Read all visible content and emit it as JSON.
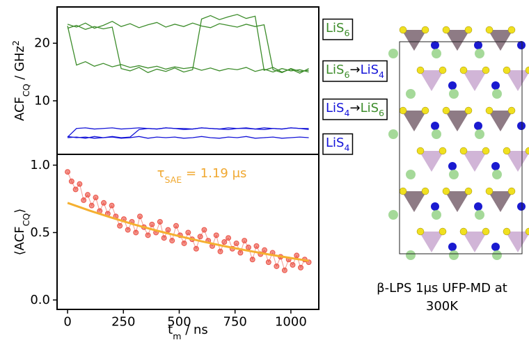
{
  "chart_data": [
    {
      "type": "line",
      "ylabel": [
        {
          "text": "ACF"
        },
        {
          "text": "CQ",
          "sub": true
        },
        {
          "text": " / GHz"
        },
        {
          "text": "2",
          "sup": true
        }
      ],
      "xlim": [
        -47,
        1125
      ],
      "ylim": [
        0.7,
        26.3
      ],
      "yticks": [
        10,
        20
      ],
      "x": [
        0,
        40,
        80,
        120,
        160,
        200,
        240,
        280,
        320,
        360,
        400,
        440,
        480,
        520,
        560,
        600,
        640,
        680,
        720,
        760,
        800,
        840,
        880,
        920,
        960,
        1000,
        1040,
        1080
      ],
      "series": [
        {
          "color": "#3c8c2a",
          "values": [
            23.3,
            22.8,
            23.5,
            22.6,
            23.1,
            23.8,
            22.9,
            23.4,
            22.7,
            23.2,
            23.6,
            22.8,
            23.3,
            22.9,
            23.5,
            23.0,
            22.7,
            23.4,
            23.1,
            22.8,
            23.3,
            22.9,
            23.2,
            15.4,
            14.9,
            15.6,
            15.1,
            15.3
          ]
        },
        {
          "color": "#3c8c2a",
          "values": [
            22.6,
            23.1,
            22.4,
            22.9,
            22.5,
            22.8,
            15.6,
            15.2,
            15.8,
            14.9,
            15.5,
            15.1,
            15.7,
            15.0,
            15.4,
            24.2,
            24.8,
            24.1,
            24.6,
            25.0,
            24.3,
            24.7,
            15.3,
            15.8,
            15.0,
            15.5,
            14.8,
            15.6
          ]
        },
        {
          "color": "#3c8c2a",
          "values": [
            23.0,
            16.2,
            16.8,
            16.0,
            16.5,
            15.9,
            16.3,
            15.8,
            16.1,
            15.7,
            16.0,
            15.5,
            15.9,
            15.6,
            15.8,
            15.3,
            15.7,
            15.2,
            15.6,
            15.4,
            15.8,
            15.1,
            15.5,
            15.0,
            15.6,
            15.2,
            15.4,
            15.0
          ]
        },
        {
          "color": "#1414d8",
          "values": [
            3.7,
            5.2,
            5.3,
            5.1,
            5.2,
            5.3,
            5.1,
            5.2,
            5.3,
            5.2,
            5.1,
            5.3,
            5.2,
            5.2,
            5.1,
            5.3,
            5.2,
            5.1,
            5.3,
            5.2,
            5.2,
            5.1,
            5.3,
            5.2,
            5.1,
            5.3,
            5.2,
            5.2
          ]
        },
        {
          "color": "#1414d8",
          "values": [
            3.6,
            3.7,
            3.5,
            3.8,
            3.6,
            3.7,
            3.5,
            3.6,
            3.8,
            3.5,
            3.7,
            3.6,
            3.7,
            3.5,
            3.6,
            3.8,
            3.6,
            3.5,
            3.7,
            3.6,
            3.8,
            3.5,
            3.6,
            3.7,
            3.5,
            3.6,
            3.7,
            3.6
          ]
        },
        {
          "color": "#1414d8",
          "values": [
            3.8,
            3.6,
            3.7,
            3.5,
            3.6,
            3.8,
            3.6,
            3.7,
            5.0,
            5.2,
            5.1,
            5.3,
            5.2,
            5.0,
            5.1,
            5.3,
            5.2,
            5.1,
            5.0,
            5.2,
            5.3,
            5.1,
            5.0,
            5.2,
            5.1,
            5.3,
            5.2,
            5.0
          ]
        }
      ],
      "annotations": [
        [
          {
            "text": "LiS",
            "color": "#3c8c2a"
          },
          {
            "text": "6",
            "color": "#3c8c2a",
            "sub": true
          }
        ],
        [
          {
            "text": "LiS",
            "color": "#3c8c2a"
          },
          {
            "text": "6",
            "color": "#3c8c2a",
            "sub": true
          },
          {
            "text": "→",
            "color": "#000000"
          },
          {
            "text": "LiS",
            "color": "#1414d8"
          },
          {
            "text": "4",
            "color": "#1414d8",
            "sub": true
          }
        ],
        [
          {
            "text": "LiS",
            "color": "#1414d8"
          },
          {
            "text": "4",
            "color": "#1414d8",
            "sub": true
          },
          {
            "text": "→",
            "color": "#000000"
          },
          {
            "text": "LiS",
            "color": "#3c8c2a"
          },
          {
            "text": "6",
            "color": "#3c8c2a",
            "sub": true
          }
        ],
        [
          {
            "text": "LiS",
            "color": "#1414d8"
          },
          {
            "text": "4",
            "color": "#1414d8",
            "sub": true
          }
        ]
      ]
    },
    {
      "type": "scatter",
      "xlabel": [
        {
          "text": "t"
        },
        {
          "text": "m",
          "sub": true
        },
        {
          "text": " / ns"
        }
      ],
      "ylabel": [
        {
          "text": "⟨ACF"
        },
        {
          "text": "CQ",
          "sub": true
        },
        {
          "text": "⟩"
        }
      ],
      "xlim": [
        -47,
        1125
      ],
      "ylim": [
        -0.07,
        1.08
      ],
      "xticks": [
        0,
        250,
        500,
        750,
        1000
      ],
      "yticks": [
        {
          "value": 0,
          "label": "0.0"
        },
        {
          "value": 0.5,
          "label": "0.5"
        },
        {
          "value": 1,
          "label": "1.0"
        }
      ],
      "annotation": [
        {
          "text": "τ"
        },
        {
          "text": "SAE",
          "sub": true
        },
        {
          "text": " = 1.19 μs"
        }
      ],
      "annotation_color": "#f0a830",
      "series": [
        {
          "color": "#e8382a",
          "x": [
            0,
            18,
            36,
            54,
            72,
            90,
            108,
            126,
            144,
            162,
            180,
            198,
            216,
            234,
            252,
            270,
            288,
            306,
            324,
            342,
            360,
            378,
            396,
            414,
            432,
            450,
            468,
            486,
            504,
            522,
            540,
            558,
            576,
            594,
            612,
            630,
            648,
            666,
            684,
            702,
            720,
            738,
            756,
            774,
            792,
            810,
            828,
            846,
            864,
            882,
            900,
            918,
            936,
            954,
            972,
            990,
            1008,
            1026,
            1044,
            1062,
            1080
          ],
          "values": [
            0.95,
            0.88,
            0.82,
            0.86,
            0.74,
            0.78,
            0.7,
            0.76,
            0.66,
            0.72,
            0.64,
            0.7,
            0.62,
            0.55,
            0.6,
            0.52,
            0.58,
            0.5,
            0.62,
            0.54,
            0.48,
            0.56,
            0.5,
            0.58,
            0.46,
            0.52,
            0.44,
            0.55,
            0.48,
            0.42,
            0.5,
            0.45,
            0.38,
            0.47,
            0.52,
            0.44,
            0.4,
            0.48,
            0.36,
            0.43,
            0.46,
            0.38,
            0.42,
            0.35,
            0.44,
            0.39,
            0.3,
            0.4,
            0.34,
            0.37,
            0.28,
            0.35,
            0.25,
            0.32,
            0.22,
            0.3,
            0.26,
            0.33,
            0.24,
            0.3,
            0.28
          ]
        },
        {
          "type": "line",
          "color": "#f5b030",
          "x": [
            0,
            100,
            200,
            300,
            400,
            500,
            600,
            700,
            800,
            900,
            1000,
            1080
          ],
          "values": [
            0.72,
            0.662,
            0.609,
            0.559,
            0.514,
            0.473,
            0.435,
            0.4,
            0.368,
            0.338,
            0.311,
            0.29
          ]
        }
      ]
    }
  ],
  "caption": [
    "β-LPS 1μs UFP-MD at",
    "300K"
  ]
}
